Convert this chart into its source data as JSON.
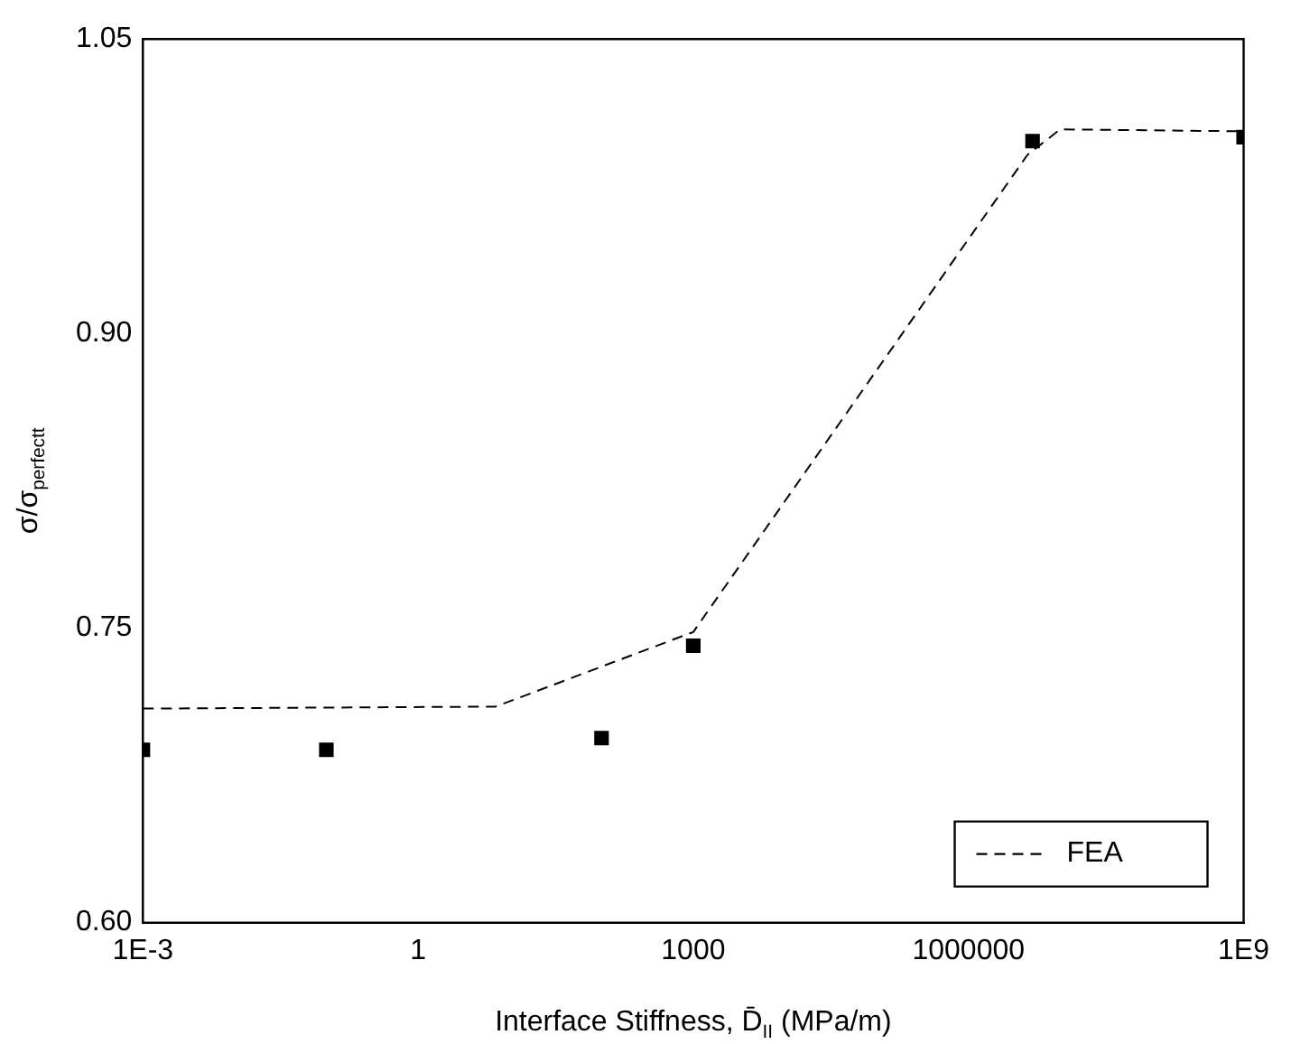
{
  "chart_data": {
    "type": "scatter",
    "xlabel": "Interface Stiffness, D̄$_{II}$ (MPa/m)",
    "ylabel": "σ/σ$_{perfectt}$",
    "log": "x",
    "xlim": [
      0.001,
      1000000000
    ],
    "xticks": [
      {
        "value": 0.001,
        "label": "1E-3"
      },
      1,
      1000,
      1000000,
      {
        "value": 1000000000,
        "label": "1E9"
      }
    ],
    "ylim": [
      0.6,
      1.05
    ],
    "yticks": [
      {
        "value": 0.6,
        "label": "0.60"
      },
      {
        "value": 0.75,
        "label": "0.75"
      },
      {
        "value": 0.9,
        "label": "0.90"
      },
      {
        "value": 1.05,
        "label": "1.05"
      }
    ],
    "grid": false,
    "legend": "bottom right",
    "series": [
      {
        "color": "#000000",
        "marker": "square",
        "x": [
          0.001,
          0.1,
          100,
          1000,
          5000000,
          1000000000
        ],
        "values": [
          0.688,
          0.688,
          0.694,
          0.741,
          0.998,
          1.0
        ]
      },
      {
        "type": "line",
        "name": "FEA",
        "color": "#000000",
        "marker": "none",
        "line_style": "dashed",
        "x": [
          0.001,
          7,
          1000,
          4400000,
          10000000,
          1000000000
        ],
        "values": [
          0.709,
          0.71,
          0.748,
          0.991,
          1.004,
          1.003
        ]
      }
    ]
  }
}
